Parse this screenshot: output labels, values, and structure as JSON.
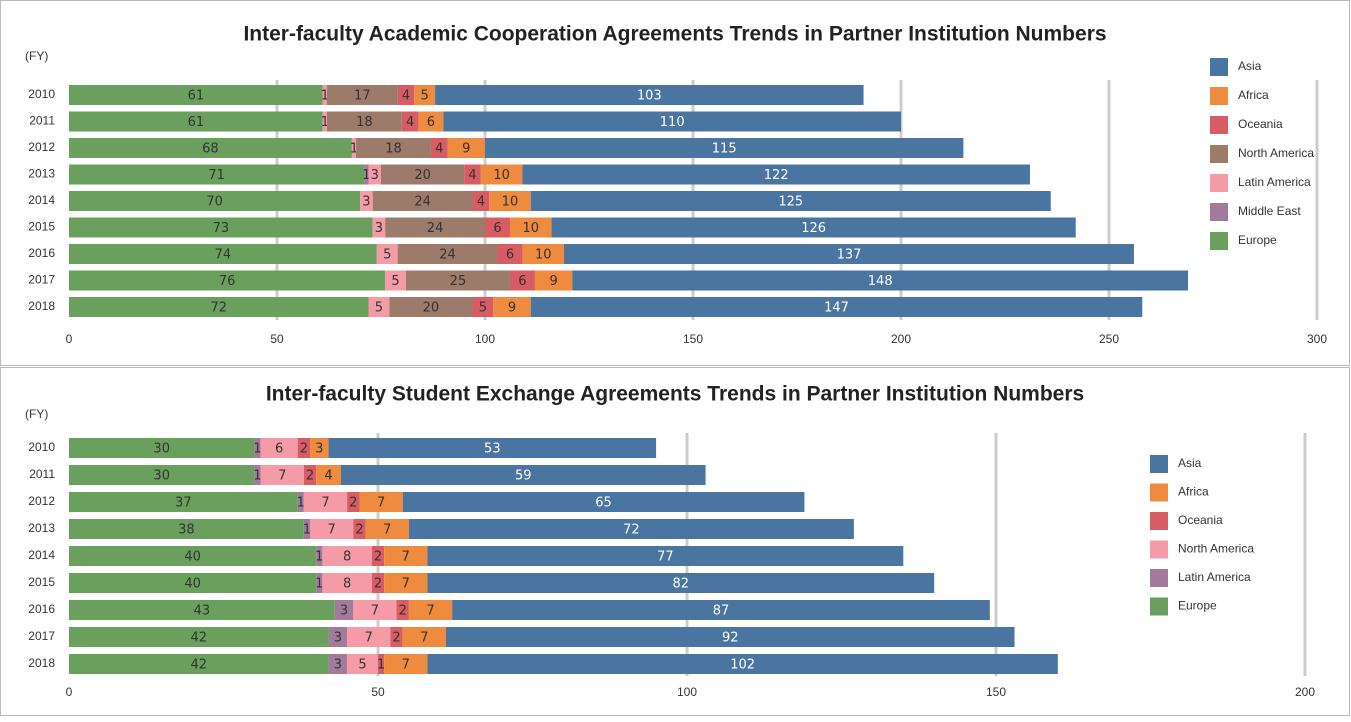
{
  "chart_data": [
    {
      "type": "bar",
      "orientation": "horizontal",
      "stacked": true,
      "title": "Inter-faculty Academic Cooperation Agreements Trends in Partner Institution Numbers",
      "y_label": "(FY)",
      "categories": [
        "2010",
        "2011",
        "2012",
        "2013",
        "2014",
        "2015",
        "2016",
        "2017",
        "2018"
      ],
      "series": [
        {
          "name": "Europe",
          "color": "#6a9f5e",
          "values": [
            61,
            61,
            68,
            71,
            70,
            73,
            74,
            76,
            72
          ]
        },
        {
          "name": "Middle East",
          "color": "#a27a9c",
          "values": [
            0,
            0,
            0,
            1,
            0,
            0,
            0,
            0,
            0
          ]
        },
        {
          "name": "Latin America",
          "color": "#f59ba7",
          "values": [
            1,
            1,
            1,
            3,
            3,
            3,
            5,
            5,
            5
          ]
        },
        {
          "name": "North America",
          "color": "#9c7b6b",
          "values": [
            17,
            18,
            18,
            20,
            24,
            24,
            24,
            25,
            20
          ]
        },
        {
          "name": "Oceania",
          "color": "#d85c63",
          "values": [
            4,
            4,
            4,
            4,
            4,
            6,
            6,
            6,
            5
          ]
        },
        {
          "name": "Africa",
          "color": "#ef8b3f",
          "values": [
            5,
            6,
            9,
            10,
            10,
            10,
            10,
            9,
            9
          ]
        },
        {
          "name": "Asia",
          "color": "#4a75a0",
          "values": [
            103,
            110,
            115,
            122,
            125,
            126,
            137,
            148,
            147
          ]
        }
      ],
      "xlim": [
        0,
        300
      ],
      "xticks": [
        0,
        50,
        100,
        150,
        200,
        250,
        300
      ],
      "grid": true,
      "legend": "right"
    },
    {
      "type": "bar",
      "orientation": "horizontal",
      "stacked": true,
      "title": "Inter-faculty Student Exchange Agreements Trends in Partner Institution Numbers",
      "y_label": "(FY)",
      "categories": [
        "2010",
        "2011",
        "2012",
        "2013",
        "2014",
        "2015",
        "2016",
        "2017",
        "2018"
      ],
      "series": [
        {
          "name": "Europe",
          "color": "#6a9f5e",
          "values": [
            30,
            30,
            37,
            38,
            40,
            40,
            43,
            42,
            42
          ]
        },
        {
          "name": "Latin America",
          "color": "#a27a9c",
          "values": [
            1,
            1,
            1,
            1,
            1,
            1,
            3,
            3,
            3
          ]
        },
        {
          "name": "North America",
          "color": "#f59ba7",
          "values": [
            6,
            7,
            7,
            7,
            8,
            8,
            7,
            7,
            5
          ]
        },
        {
          "name": "Oceania",
          "color": "#d85c63",
          "values": [
            2,
            2,
            2,
            2,
            2,
            2,
            2,
            2,
            1
          ]
        },
        {
          "name": "Africa",
          "color": "#ef8b3f",
          "values": [
            3,
            4,
            7,
            7,
            7,
            7,
            7,
            7,
            7
          ]
        },
        {
          "name": "Asia",
          "color": "#4a75a0",
          "values": [
            53,
            59,
            65,
            72,
            77,
            82,
            87,
            92,
            102
          ]
        }
      ],
      "xlim": [
        0,
        200
      ],
      "xticks": [
        0,
        50,
        100,
        150,
        200
      ],
      "grid": true,
      "legend": "right"
    }
  ]
}
